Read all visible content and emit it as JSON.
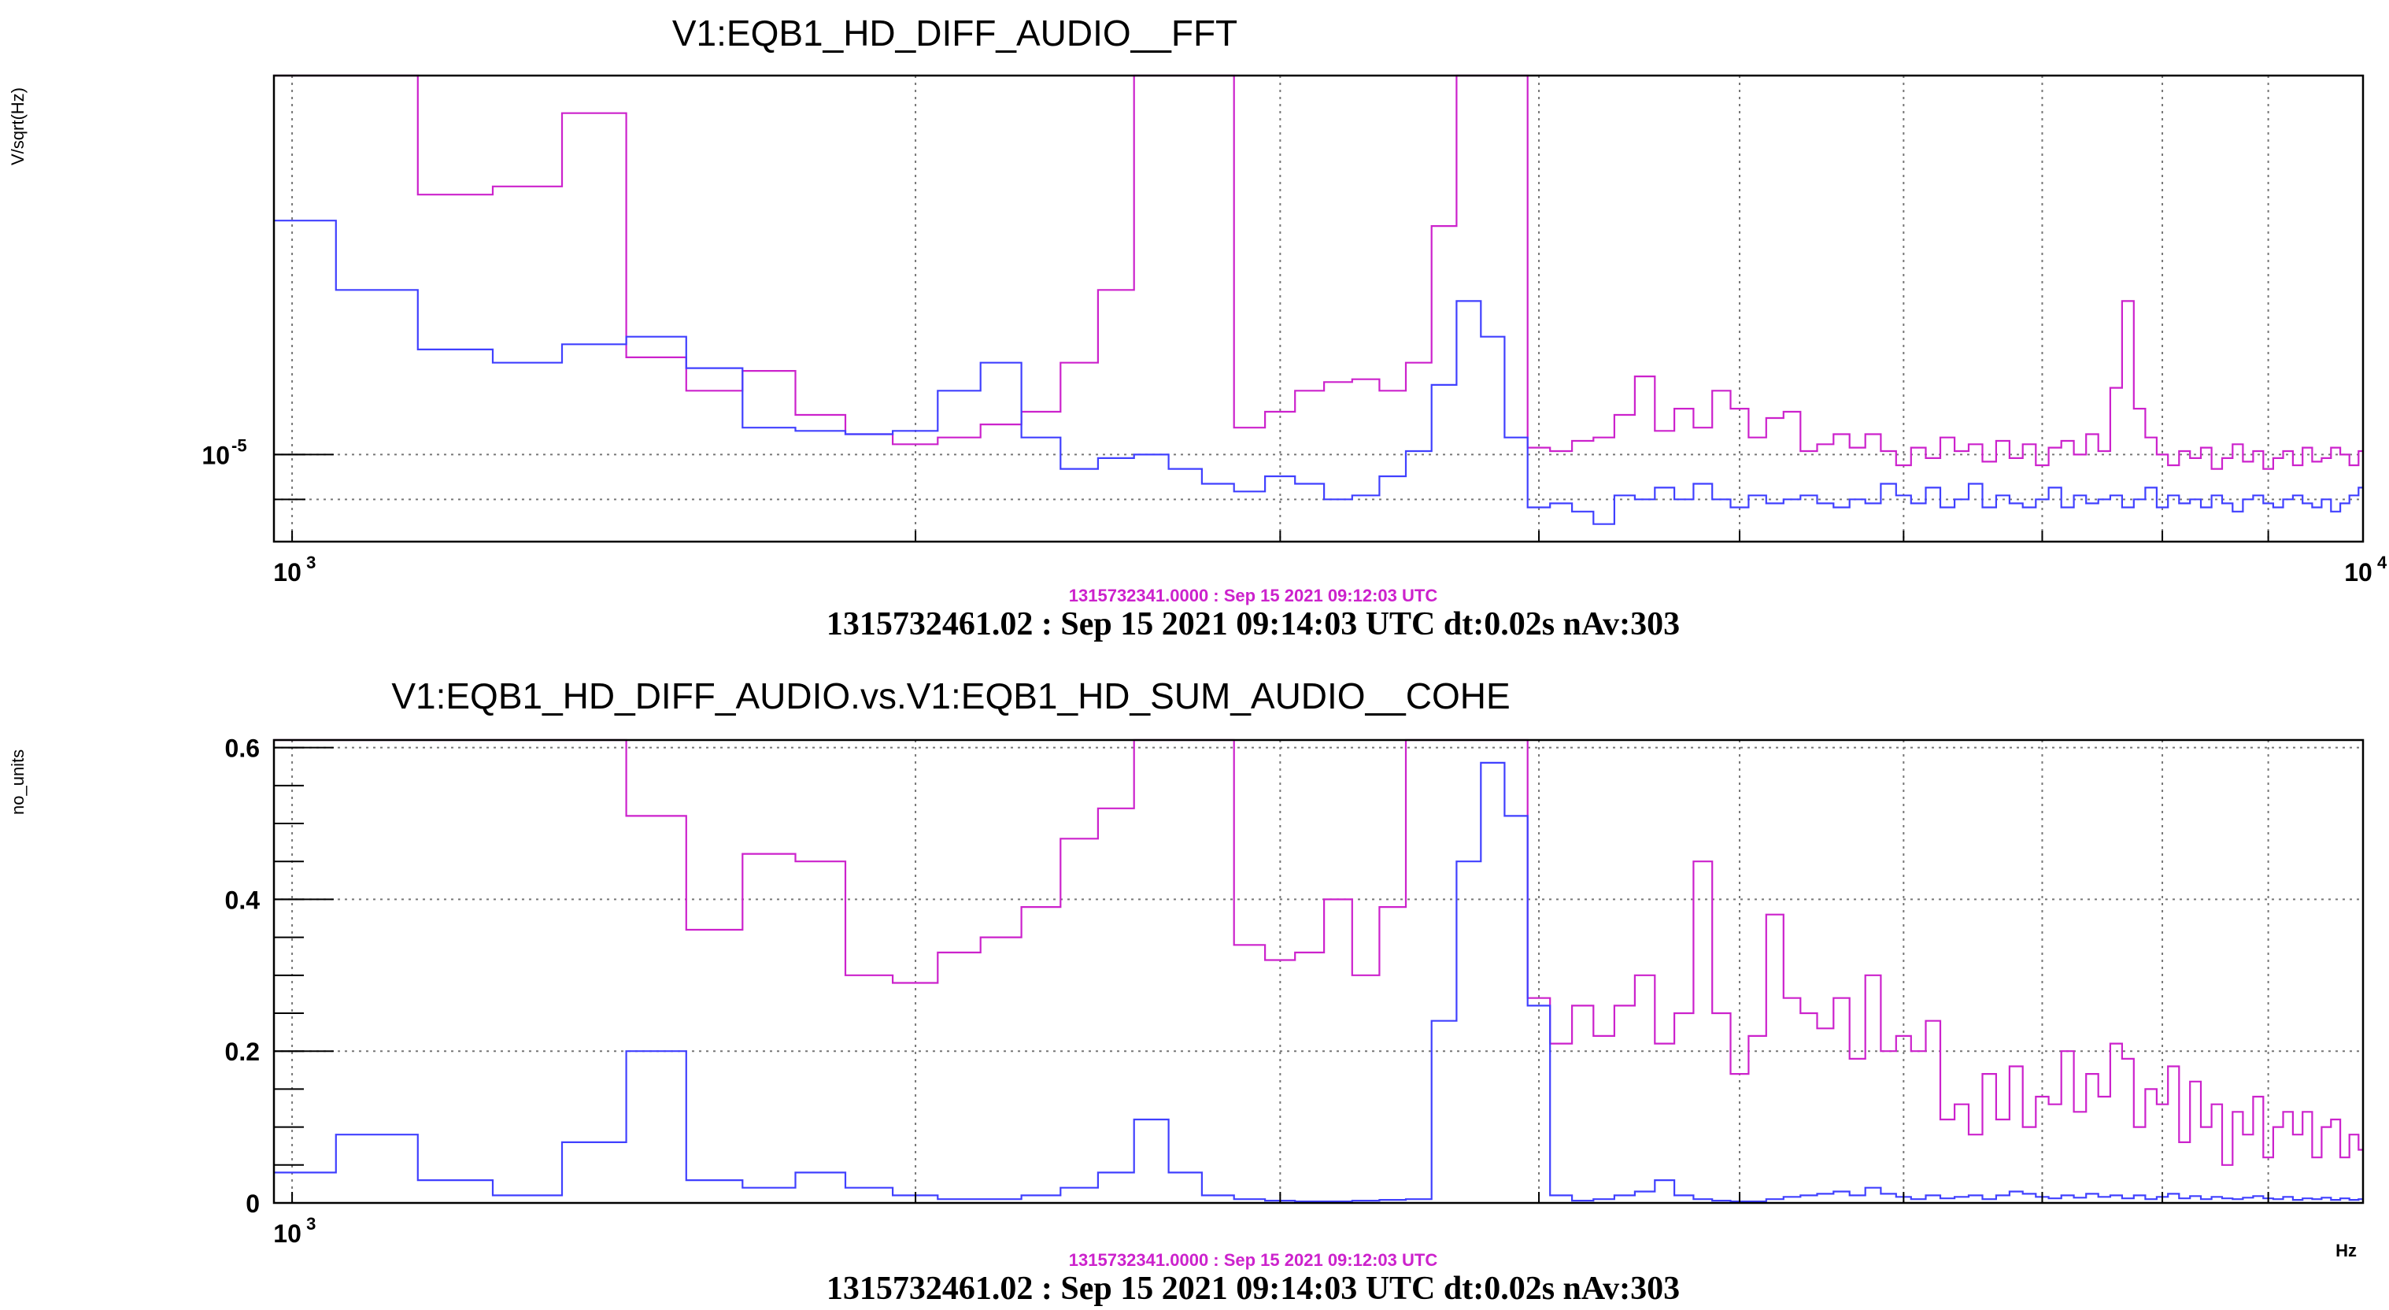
{
  "chart_data": [
    {
      "type": "line",
      "title": "V1:EQB1_HD_DIFF_AUDIO__FFT",
      "ylabel": "V/sqrt(Hz)",
      "xlabel": "",
      "x_scale": "log",
      "y_scale": "log",
      "xlim": [
        980,
        10000
      ],
      "ylim": [
        7.8e-06,
        2.95e-05
      ],
      "grid": true,
      "x_tick_labels": [
        {
          "value": 1000,
          "base": "10",
          "exp": "3"
        },
        {
          "value": 10000,
          "base": "10",
          "exp": "4"
        }
      ],
      "y_tick_labels": [
        {
          "value": 1e-05,
          "base": "10",
          "exp": "-5"
        }
      ],
      "x_gridlines": [
        1000,
        2000,
        3000,
        4000,
        5000,
        6000,
        7000,
        8000,
        9000,
        10000
      ],
      "y_gridlines": [
        1e-05,
        8.8e-06
      ],
      "ref_label": "1315732341.0000 : Sep 15 2021 09:12:03 UTC",
      "stamp": "1315732461.02 : Sep 15 2021 09:14:03 UTC dt:0.02s nAv:303",
      "series": [
        {
          "color": "#cc22cc",
          "x": [
            980,
            1050,
            1150,
            1250,
            1350,
            1450,
            1550,
            1650,
            1750,
            1850,
            1950,
            2050,
            2150,
            2250,
            2350,
            2450,
            2550,
            2650,
            2750,
            2850,
            2950,
            3050,
            3150,
            3250,
            3350,
            3450,
            3550,
            3650,
            3750,
            3850,
            3950,
            4050,
            4150,
            4250,
            4350,
            4450,
            4550,
            4650,
            4750,
            4850,
            4950,
            5050,
            5150,
            5250,
            5350,
            5450,
            5550,
            5650,
            5750,
            5850,
            5950,
            6050,
            6150,
            6250,
            6350,
            6450,
            6550,
            6650,
            6750,
            6850,
            6950,
            7050,
            7150,
            7250,
            7350,
            7450,
            7550,
            7650,
            7750,
            7850,
            7950,
            8050,
            8150,
            8250,
            8350,
            8450,
            8550,
            8650,
            8750,
            8850,
            8950,
            9050,
            9150,
            9250,
            9350,
            9450,
            9550,
            9650,
            9750,
            9850,
            9950,
            10000
          ],
          "y": [
            2.95e-05,
            2.95e-05,
            2.1e-05,
            2.15e-05,
            2.65e-05,
            1.32e-05,
            1.2e-05,
            1.27e-05,
            1.12e-05,
            1.06e-05,
            1.03e-05,
            1.05e-05,
            1.09e-05,
            1.13e-05,
            1.3e-05,
            1.6e-05,
            2.95e-05,
            2.95e-05,
            2.95e-05,
            1.08e-05,
            1.13e-05,
            1.2e-05,
            1.23e-05,
            1.24e-05,
            1.2e-05,
            1.3e-05,
            1.92e-05,
            2.95e-05,
            2.95e-05,
            2.95e-05,
            1.02e-05,
            1.01e-05,
            1.04e-05,
            1.05e-05,
            1.12e-05,
            1.25e-05,
            1.07e-05,
            1.14e-05,
            1.08e-05,
            1.2e-05,
            1.14e-05,
            1.05e-05,
            1.11e-05,
            1.13e-05,
            1.01e-05,
            1.03e-05,
            1.06e-05,
            1.02e-05,
            1.06e-05,
            1.01e-05,
            9.7e-06,
            1.02e-05,
            9.9e-06,
            1.05e-05,
            1.01e-05,
            1.03e-05,
            9.8e-06,
            1.04e-05,
            9.9e-06,
            1.03e-05,
            9.7e-06,
            1.02e-05,
            1.04e-05,
            1e-05,
            1.06e-05,
            1.01e-05,
            1.21e-05,
            1.55e-05,
            1.14e-05,
            1.05e-05,
            1e-05,
            9.7e-06,
            1.01e-05,
            9.9e-06,
            1.02e-05,
            9.6e-06,
            9.9e-06,
            1.03e-05,
            9.8e-06,
            1.01e-05,
            9.6e-06,
            9.9e-06,
            1.01e-05,
            9.7e-06,
            1.02e-05,
            9.8e-06,
            9.9e-06,
            1.02e-05,
            1e-05,
            9.7e-06,
            1.01e-05,
            1.01e-05
          ]
        },
        {
          "color": "#4040ff",
          "x": [
            980,
            1050,
            1150,
            1250,
            1350,
            1450,
            1550,
            1650,
            1750,
            1850,
            1950,
            2050,
            2150,
            2250,
            2350,
            2450,
            2550,
            2650,
            2750,
            2850,
            2950,
            3050,
            3150,
            3250,
            3350,
            3450,
            3550,
            3650,
            3750,
            3850,
            3950,
            4050,
            4150,
            4250,
            4350,
            4450,
            4550,
            4650,
            4750,
            4850,
            4950,
            5050,
            5150,
            5250,
            5350,
            5450,
            5550,
            5650,
            5750,
            5850,
            5950,
            6050,
            6150,
            6250,
            6350,
            6450,
            6550,
            6650,
            6750,
            6850,
            6950,
            7050,
            7150,
            7250,
            7350,
            7450,
            7550,
            7650,
            7750,
            7850,
            7950,
            8050,
            8150,
            8250,
            8350,
            8450,
            8550,
            8650,
            8750,
            8850,
            8950,
            9050,
            9150,
            9250,
            9350,
            9450,
            9550,
            9650,
            9750,
            9850,
            9950,
            10000
          ],
          "y": [
            1.95e-05,
            1.6e-05,
            1.35e-05,
            1.3e-05,
            1.37e-05,
            1.4e-05,
            1.28e-05,
            1.08e-05,
            1.07e-05,
            1.06e-05,
            1.07e-05,
            1.2e-05,
            1.3e-05,
            1.05e-05,
            9.6e-06,
            9.9e-06,
            1e-05,
            9.6e-06,
            9.2e-06,
            9e-06,
            9.4e-06,
            9.2e-06,
            8.8e-06,
            8.9e-06,
            9.4e-06,
            1.01e-05,
            1.22e-05,
            1.55e-05,
            1.4e-05,
            1.05e-05,
            8.6e-06,
            8.7e-06,
            8.5e-06,
            8.2e-06,
            8.9e-06,
            8.8e-06,
            9.1e-06,
            8.8e-06,
            9.2e-06,
            8.8e-06,
            8.6e-06,
            8.9e-06,
            8.7e-06,
            8.8e-06,
            8.9e-06,
            8.7e-06,
            8.6e-06,
            8.8e-06,
            8.7e-06,
            9.2e-06,
            8.9e-06,
            8.7e-06,
            9.1e-06,
            8.6e-06,
            8.8e-06,
            9.2e-06,
            8.6e-06,
            8.9e-06,
            8.7e-06,
            8.6e-06,
            8.8e-06,
            9.1e-06,
            8.6e-06,
            8.9e-06,
            8.7e-06,
            8.8e-06,
            8.9e-06,
            8.6e-06,
            8.8e-06,
            9.1e-06,
            8.6e-06,
            8.9e-06,
            8.7e-06,
            8.8e-06,
            8.6e-06,
            8.9e-06,
            8.7e-06,
            8.5e-06,
            8.8e-06,
            8.9e-06,
            8.7e-06,
            8.6e-06,
            8.8e-06,
            8.9e-06,
            8.7e-06,
            8.6e-06,
            8.8e-06,
            8.5e-06,
            8.7e-06,
            8.9e-06,
            9.1e-06,
            9e-06
          ]
        }
      ]
    },
    {
      "type": "line",
      "title": "V1:EQB1_HD_DIFF_AUDIO.vs.V1:EQB1_HD_SUM_AUDIO__COHE",
      "ylabel": "no_units",
      "xlabel": "Hz",
      "x_scale": "log",
      "y_scale": "linear",
      "xlim": [
        980,
        10000
      ],
      "ylim": [
        0,
        0.61
      ],
      "grid": true,
      "x_tick_labels": [
        {
          "value": 1000,
          "base": "10",
          "exp": "3"
        }
      ],
      "y_tick_labels": [
        {
          "value": 0,
          "label": "0"
        },
        {
          "value": 0.2,
          "label": "0.2"
        },
        {
          "value": 0.4,
          "label": "0.4"
        },
        {
          "value": 0.6,
          "label": "0.6"
        }
      ],
      "x_gridlines": [
        1000,
        2000,
        3000,
        4000,
        5000,
        6000,
        7000,
        8000,
        9000,
        10000
      ],
      "y_gridlines": [
        0.2,
        0.4,
        0.6
      ],
      "ref_label": "1315732341.0000 : Sep 15 2021 09:12:03 UTC",
      "stamp": "1315732461.02 : Sep 15 2021 09:14:03 UTC dt:0.02s nAv:303",
      "series": [
        {
          "color": "#cc22cc",
          "x": [
            980,
            1050,
            1150,
            1250,
            1350,
            1450,
            1550,
            1650,
            1750,
            1850,
            1950,
            2050,
            2150,
            2250,
            2350,
            2450,
            2550,
            2650,
            2750,
            2850,
            2950,
            3050,
            3150,
            3250,
            3350,
            3450,
            3550,
            3650,
            3750,
            3850,
            3950,
            4050,
            4150,
            4250,
            4350,
            4450,
            4550,
            4650,
            4750,
            4850,
            4950,
            5050,
            5150,
            5250,
            5350,
            5450,
            5550,
            5650,
            5750,
            5850,
            5950,
            6050,
            6150,
            6250,
            6350,
            6450,
            6550,
            6650,
            6750,
            6850,
            6950,
            7050,
            7150,
            7250,
            7350,
            7450,
            7550,
            7650,
            7750,
            7850,
            7950,
            8050,
            8150,
            8250,
            8350,
            8450,
            8550,
            8650,
            8750,
            8850,
            8950,
            9050,
            9150,
            9250,
            9350,
            9450,
            9550,
            9650,
            9750,
            9850,
            9950,
            10000
          ],
          "y": [
            0.61,
            0.61,
            0.61,
            0.61,
            0.61,
            0.51,
            0.36,
            0.46,
            0.45,
            0.3,
            0.29,
            0.33,
            0.35,
            0.39,
            0.48,
            0.52,
            0.61,
            0.61,
            0.61,
            0.34,
            0.32,
            0.33,
            0.4,
            0.3,
            0.39,
            0.61,
            0.61,
            0.61,
            0.61,
            0.61,
            0.27,
            0.21,
            0.26,
            0.22,
            0.26,
            0.3,
            0.21,
            0.25,
            0.45,
            0.25,
            0.17,
            0.22,
            0.38,
            0.27,
            0.25,
            0.23,
            0.27,
            0.19,
            0.3,
            0.2,
            0.22,
            0.2,
            0.24,
            0.11,
            0.13,
            0.09,
            0.17,
            0.11,
            0.18,
            0.1,
            0.14,
            0.13,
            0.2,
            0.12,
            0.17,
            0.14,
            0.21,
            0.19,
            0.1,
            0.15,
            0.13,
            0.18,
            0.08,
            0.16,
            0.1,
            0.13,
            0.05,
            0.12,
            0.09,
            0.14,
            0.06,
            0.1,
            0.12,
            0.09,
            0.12,
            0.06,
            0.1,
            0.11,
            0.06,
            0.09,
            0.07,
            0.04
          ]
        },
        {
          "color": "#4040ff",
          "x": [
            980,
            1050,
            1150,
            1250,
            1350,
            1450,
            1550,
            1650,
            1750,
            1850,
            1950,
            2050,
            2150,
            2250,
            2350,
            2450,
            2550,
            2650,
            2750,
            2850,
            2950,
            3050,
            3150,
            3250,
            3350,
            3450,
            3550,
            3650,
            3750,
            3850,
            3950,
            4050,
            4150,
            4250,
            4350,
            4450,
            4550,
            4650,
            4750,
            4850,
            4950,
            5050,
            5150,
            5250,
            5350,
            5450,
            5550,
            5650,
            5750,
            5850,
            5950,
            6050,
            6150,
            6250,
            6350,
            6450,
            6550,
            6650,
            6750,
            6850,
            6950,
            7050,
            7150,
            7250,
            7350,
            7450,
            7550,
            7650,
            7750,
            7850,
            7950,
            8050,
            8150,
            8250,
            8350,
            8450,
            8550,
            8650,
            8750,
            8850,
            8950,
            9050,
            9150,
            9250,
            9350,
            9450,
            9550,
            9650,
            9750,
            9850,
            9950,
            10000
          ],
          "y": [
            0.04,
            0.09,
            0.03,
            0.01,
            0.08,
            0.2,
            0.03,
            0.02,
            0.04,
            0.02,
            0.01,
            0.005,
            0.005,
            0.01,
            0.02,
            0.04,
            0.11,
            0.04,
            0.01,
            0.005,
            0.003,
            0.002,
            0.002,
            0.003,
            0.004,
            0.005,
            0.24,
            0.45,
            0.58,
            0.51,
            0.26,
            0.01,
            0.003,
            0.005,
            0.01,
            0.015,
            0.03,
            0.01,
            0.005,
            0.003,
            0.002,
            0.002,
            0.005,
            0.008,
            0.01,
            0.012,
            0.015,
            0.01,
            0.02,
            0.012,
            0.008,
            0.005,
            0.01,
            0.006,
            0.008,
            0.01,
            0.005,
            0.01,
            0.015,
            0.012,
            0.008,
            0.006,
            0.01,
            0.007,
            0.012,
            0.008,
            0.01,
            0.006,
            0.01,
            0.005,
            0.008,
            0.012,
            0.006,
            0.009,
            0.005,
            0.008,
            0.006,
            0.005,
            0.007,
            0.009,
            0.006,
            0.005,
            0.008,
            0.004,
            0.006,
            0.005,
            0.007,
            0.004,
            0.006,
            0.004,
            0.005,
            0.005
          ]
        }
      ]
    }
  ]
}
